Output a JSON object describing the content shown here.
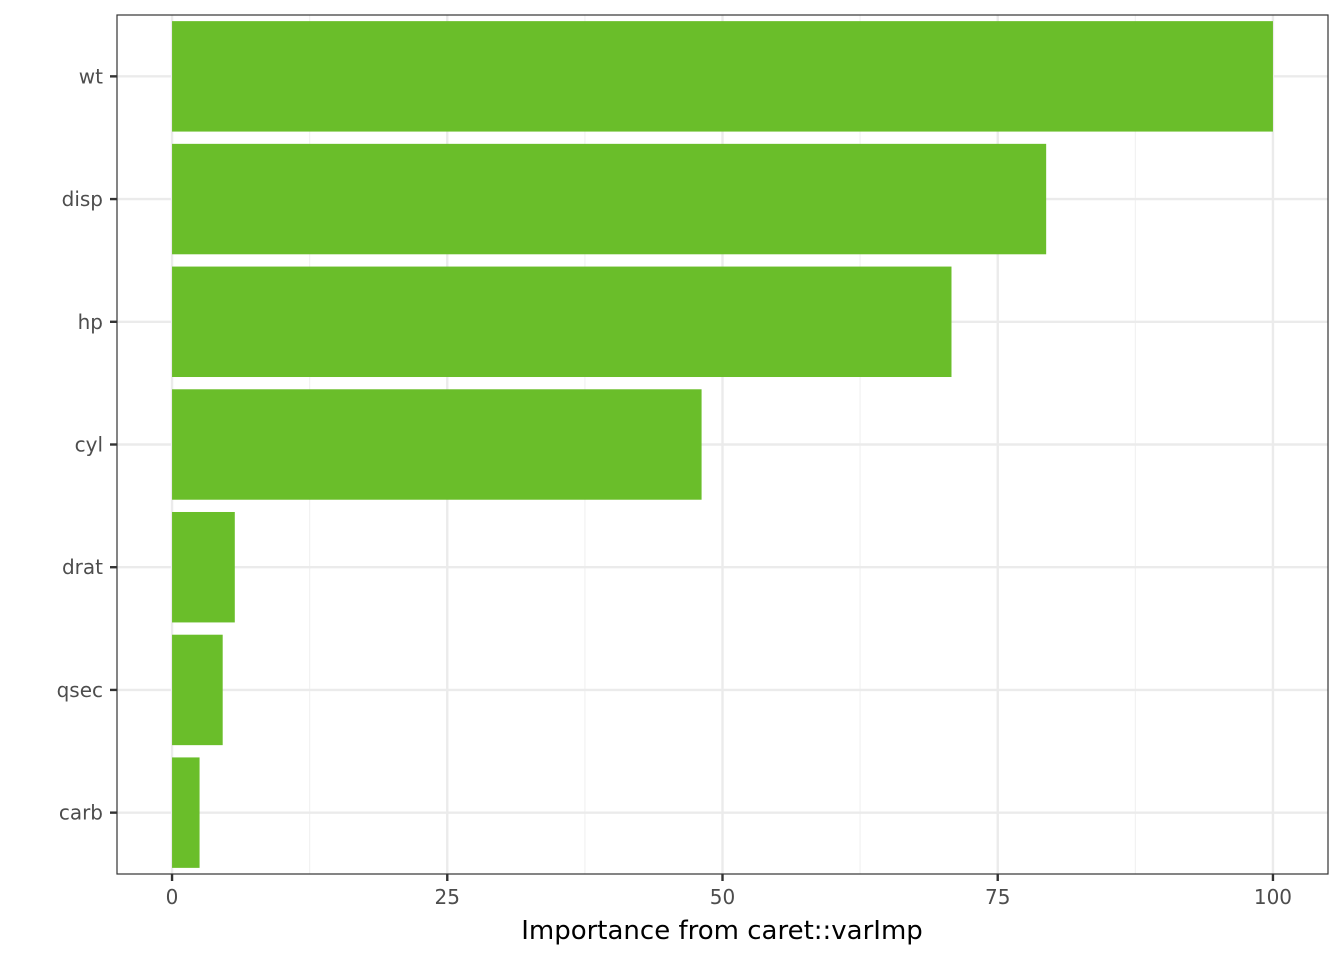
{
  "chart_data": {
    "type": "bar",
    "orientation": "horizontal",
    "categories": [
      "wt",
      "disp",
      "hp",
      "cyl",
      "drat",
      "qsec",
      "carb"
    ],
    "values": [
      100,
      79.4,
      70.8,
      48.1,
      5.7,
      4.6,
      2.5
    ],
    "title": "",
    "xlabel": "Importance from caret::varImp",
    "ylabel": "",
    "xlim": [
      -5,
      105
    ],
    "xticks": [
      0,
      25,
      50,
      75,
      100
    ],
    "xtick_labels": [
      "0",
      "25",
      "50",
      "75",
      "100"
    ],
    "grid": true,
    "legend": "none",
    "colors": {
      "bar": "#6abe2a",
      "grid_major": "#ebebeb",
      "grid_minor": "#f2f2f2",
      "panel_border": "#333333",
      "tick_text": "#4d4d4d"
    }
  }
}
